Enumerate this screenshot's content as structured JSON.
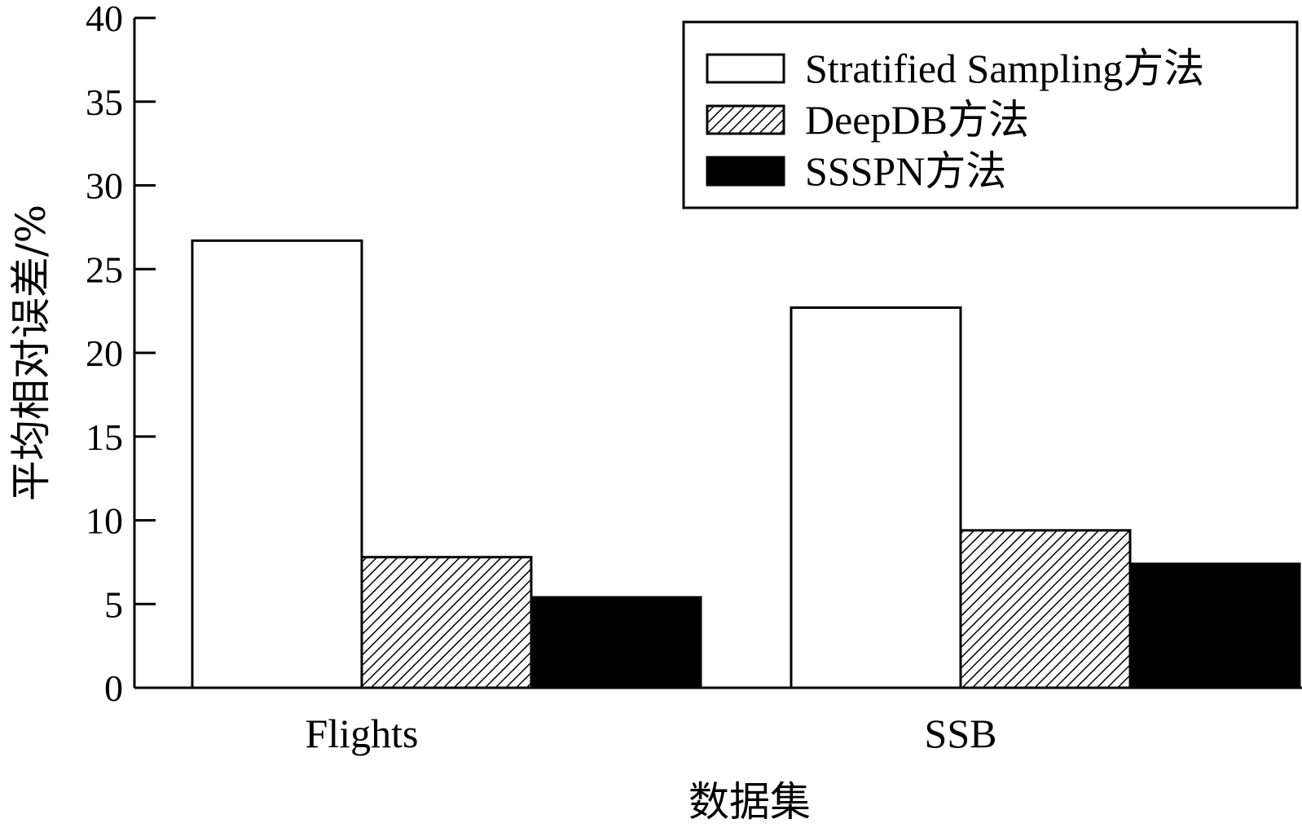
{
  "chart_data": {
    "type": "bar",
    "categories": [
      "Flights",
      "SSB"
    ],
    "series": [
      {
        "name": "Stratified Sampling方法",
        "values": [
          26.7,
          22.7
        ],
        "fill": "white"
      },
      {
        "name": "DeepDB方法",
        "values": [
          7.8,
          9.4
        ],
        "fill": "hatch"
      },
      {
        "name": "SSSPN方法",
        "values": [
          5.4,
          7.4
        ],
        "fill": "black"
      }
    ],
    "ylabel": "平均相对误差/%",
    "xlabel": "数据集",
    "ylim": [
      0,
      40
    ],
    "yticks": [
      "0",
      "5",
      "10",
      "15",
      "20",
      "25",
      "30",
      "35",
      "40"
    ],
    "legend_position": "top-right",
    "grid": false
  }
}
